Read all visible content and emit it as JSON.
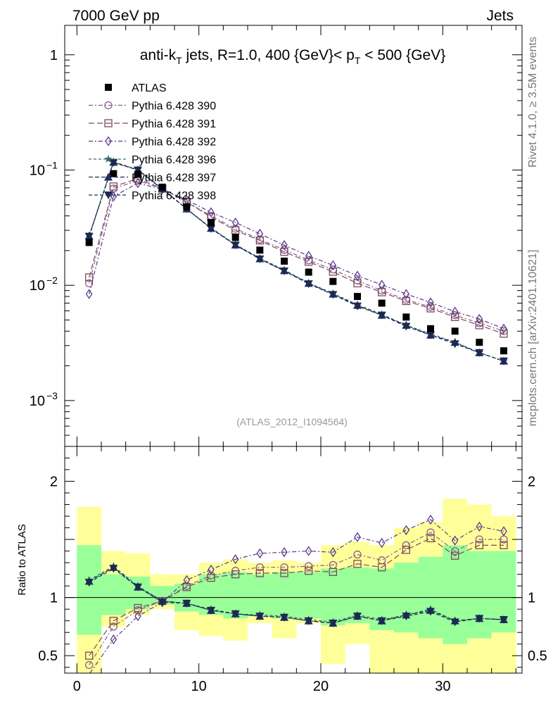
{
  "header": {
    "left": "7000 GeV pp",
    "right": "Jets"
  },
  "side_labels": {
    "rivet": "Rivet 4.1.0, ≥ 3.5M events",
    "mcplots": "mcplots.cern.ch [arXiv:2401.10621]"
  },
  "chart_data": [
    {
      "type": "scatter",
      "panel": "main",
      "title_parts": {
        "a": "anti-k",
        "a_sub": "T",
        "b": " jets, R=1.0, 400 {GeV}< p",
        "b_sub": "T",
        "c": " < 500 {GeV}"
      },
      "watermark": "(ATLAS_2012_I1094564)",
      "xlim": [
        -1,
        36.5
      ],
      "ylim": [
        0.0004,
        1.8
      ],
      "yscale": "log",
      "yticks": [
        {
          "value": 1,
          "label": "1"
        },
        {
          "value": 0.1,
          "label": "10",
          "exp": "−1"
        },
        {
          "value": 0.01,
          "label": "10",
          "exp": "−2"
        },
        {
          "value": 0.001,
          "label": "10",
          "exp": "−3"
        }
      ],
      "x": [
        1,
        3,
        5,
        7,
        9,
        11,
        13,
        15,
        17,
        19,
        21,
        23,
        25,
        27,
        29,
        31,
        33,
        35
      ],
      "series": [
        {
          "name": "ATLAS",
          "color": "#000000",
          "marker": "square-filled",
          "values": [
            0.0235,
            0.093,
            0.092,
            0.071,
            0.048,
            0.035,
            0.026,
            0.0202,
            0.0162,
            0.013,
            0.0108,
            0.008,
            0.007,
            0.0053,
            0.0042,
            0.004,
            0.0032,
            0.0027
          ]
        },
        {
          "name": "Pythia 6.428 390",
          "color": "#8b5f8b",
          "marker": "circle-open",
          "dash": "6,3,2,3",
          "values": [
            0.0104,
            0.069,
            0.081,
            0.069,
            0.053,
            0.04,
            0.031,
            0.025,
            0.0203,
            0.0165,
            0.0137,
            0.011,
            0.009,
            0.0075,
            0.0065,
            0.0055,
            0.0047,
            0.004
          ]
        },
        {
          "name": "Pythia 6.428 391",
          "color": "#7b4a5a",
          "marker": "square-open",
          "dash": "8,4",
          "values": [
            0.0117,
            0.072,
            0.084,
            0.069,
            0.053,
            0.039,
            0.03,
            0.0245,
            0.0195,
            0.016,
            0.0131,
            0.0104,
            0.0087,
            0.0073,
            0.0063,
            0.0053,
            0.0045,
            0.0038
          ]
        },
        {
          "name": "Pythia 6.428 392",
          "color": "#5a3a8a",
          "marker": "diamond-open",
          "dash": "6,3,2,3",
          "values": [
            0.0084,
            0.059,
            0.077,
            0.068,
            0.055,
            0.043,
            0.035,
            0.028,
            0.0223,
            0.018,
            0.0149,
            0.0121,
            0.0101,
            0.0084,
            0.0071,
            0.0059,
            0.0051,
            0.0042
          ]
        },
        {
          "name": "Pythia 6.428 396",
          "color": "#3a6a6a",
          "marker": "star",
          "dash": "4,3",
          "values": [
            0.027,
            0.118,
            0.101,
            0.069,
            0.046,
            0.0315,
            0.0226,
            0.0172,
            0.0136,
            0.0105,
            0.0085,
            0.0068,
            0.0056,
            0.0045,
            0.0038,
            0.0032,
            0.0026,
            0.0022
          ]
        },
        {
          "name": "Pythia 6.428 397",
          "color": "#1e2e5e",
          "marker": "triangle-filled",
          "dash": "6,3",
          "values": [
            0.0268,
            0.117,
            0.1,
            0.069,
            0.046,
            0.0312,
            0.0224,
            0.017,
            0.0134,
            0.0104,
            0.0084,
            0.0067,
            0.0055,
            0.0045,
            0.0037,
            0.0032,
            0.0026,
            0.0022
          ]
        },
        {
          "name": "Pythia 6.428 398",
          "color": "#1a2a50",
          "marker": "triangle-down-filled",
          "dash": "5,3",
          "values": [
            0.0266,
            0.116,
            0.1,
            0.068,
            0.046,
            0.031,
            0.0223,
            0.0169,
            0.0133,
            0.0103,
            0.0083,
            0.0066,
            0.0055,
            0.0044,
            0.0037,
            0.0031,
            0.0026,
            0.0022
          ]
        }
      ]
    },
    {
      "type": "line",
      "panel": "ratio",
      "ylabel": "Ratio to ATLAS",
      "xlim": [
        -1,
        36.5
      ],
      "ylim": [
        0.35,
        2.3
      ],
      "yticks": [
        {
          "value": 0.5,
          "label": "0.5"
        },
        {
          "value": 1,
          "label": "1"
        },
        {
          "value": 2,
          "label": "2"
        }
      ],
      "xticks": [
        {
          "value": 0,
          "label": "0"
        },
        {
          "value": 10,
          "label": "10"
        },
        {
          "value": 20,
          "label": "20"
        },
        {
          "value": 30,
          "label": "30"
        }
      ],
      "band_edges": [
        0,
        2,
        4,
        6,
        8,
        10,
        12,
        14,
        16,
        18,
        20,
        22,
        24,
        26,
        28,
        30,
        32,
        34,
        36
      ],
      "yellow_band": {
        "low": [
          0.3,
          0.75,
          0.85,
          0.9,
          0.72,
          0.67,
          0.63,
          0.78,
          0.65,
          0.78,
          0.43,
          0.6,
          0.3,
          0.3,
          0.3,
          0.3,
          0.3,
          0.3
        ],
        "high": [
          1.78,
          1.4,
          1.38,
          1.2,
          1.2,
          1.3,
          1.33,
          1.3,
          1.32,
          1.3,
          1.45,
          1.48,
          1.45,
          1.6,
          1.65,
          1.85,
          1.8,
          1.7
        ]
      },
      "green_band": {
        "low": [
          0.68,
          0.85,
          0.9,
          0.94,
          0.88,
          0.85,
          0.82,
          0.84,
          0.82,
          0.82,
          0.76,
          0.78,
          0.72,
          0.7,
          0.65,
          0.6,
          0.65,
          0.7
        ],
        "high": [
          1.45,
          1.2,
          1.18,
          1.1,
          1.12,
          1.2,
          1.22,
          1.2,
          1.22,
          1.22,
          1.25,
          1.26,
          1.25,
          1.3,
          1.35,
          1.45,
          1.4,
          1.4
        ]
      },
      "x": [
        1,
        3,
        5,
        7,
        9,
        11,
        13,
        15,
        17,
        19,
        21,
        23,
        25,
        27,
        29,
        31,
        33,
        35
      ],
      "series": [
        {
          "name": "Pythia 6.428 390",
          "values": [
            0.42,
            0.75,
            0.89,
            0.97,
            1.1,
            1.19,
            1.23,
            1.26,
            1.26,
            1.27,
            1.28,
            1.37,
            1.32,
            1.45,
            1.56,
            1.4,
            1.5,
            1.5
          ]
        },
        {
          "name": "Pythia 6.428 391",
          "values": [
            0.5,
            0.8,
            0.91,
            0.97,
            1.09,
            1.17,
            1.2,
            1.21,
            1.21,
            1.23,
            1.22,
            1.29,
            1.26,
            1.41,
            1.51,
            1.36,
            1.45,
            1.45
          ]
        },
        {
          "name": "Pythia 6.428 392",
          "values": [
            0.34,
            0.64,
            0.84,
            0.96,
            1.15,
            1.24,
            1.33,
            1.38,
            1.39,
            1.4,
            1.39,
            1.52,
            1.47,
            1.58,
            1.67,
            1.49,
            1.61,
            1.57
          ]
        },
        {
          "name": "Pythia 6.428 396",
          "values": [
            1.15,
            1.27,
            1.1,
            0.97,
            0.95,
            0.9,
            0.86,
            0.85,
            0.84,
            0.81,
            0.79,
            0.85,
            0.81,
            0.85,
            0.9,
            0.8,
            0.82,
            0.81
          ]
        },
        {
          "name": "Pythia 6.428 397",
          "values": [
            1.14,
            1.26,
            1.09,
            0.97,
            0.95,
            0.89,
            0.86,
            0.84,
            0.83,
            0.8,
            0.78,
            0.84,
            0.8,
            0.85,
            0.89,
            0.8,
            0.82,
            0.81
          ]
        },
        {
          "name": "Pythia 6.428 398",
          "values": [
            1.13,
            1.25,
            1.09,
            0.96,
            0.95,
            0.89,
            0.86,
            0.84,
            0.83,
            0.8,
            0.78,
            0.84,
            0.8,
            0.84,
            0.88,
            0.79,
            0.82,
            0.81
          ]
        }
      ]
    }
  ]
}
